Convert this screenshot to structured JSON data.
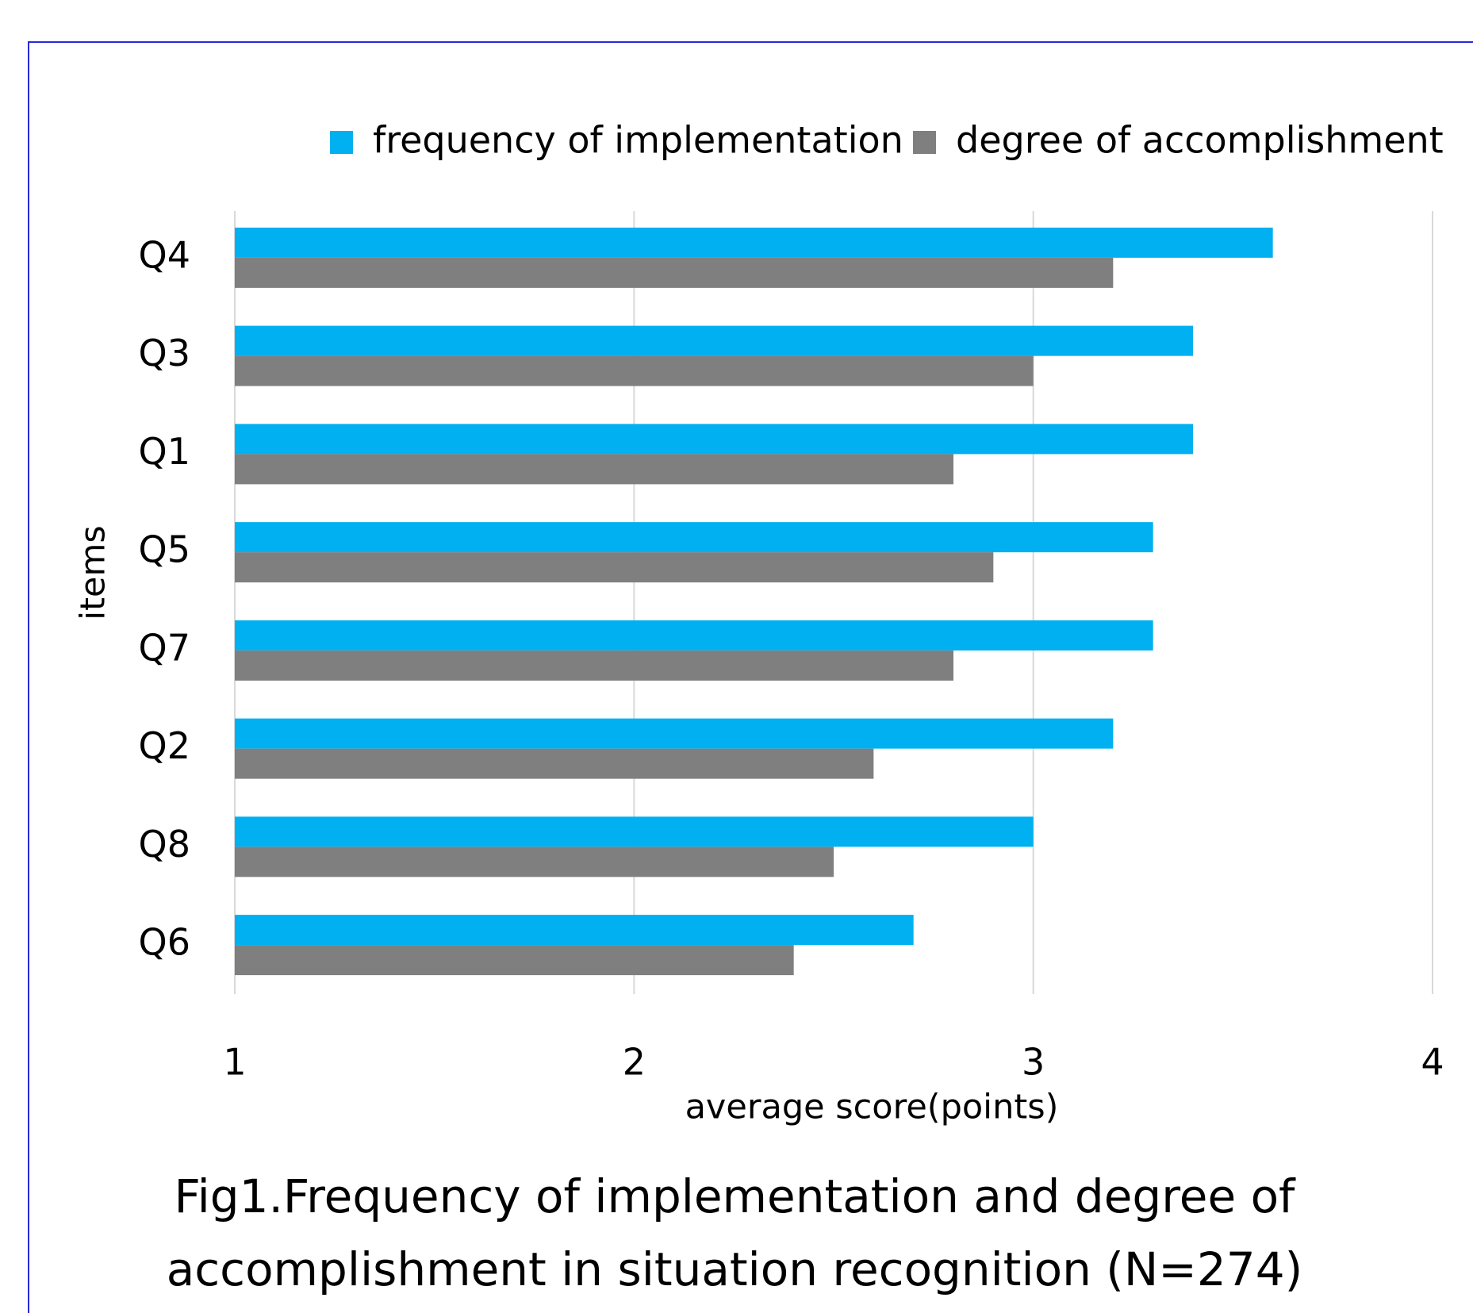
{
  "chart_data": {
    "type": "hbar",
    "title": [
      "Fig1.Frequency of implementation and degree  of",
      "accomplishment in situation recognition (N=274)"
    ],
    "xlabel": "average score(points)",
    "ylabel": "items",
    "categories": [
      "Q4",
      "Q3",
      "Q1",
      "Q5",
      "Q7",
      "Q2",
      "Q8",
      "Q6"
    ],
    "series": [
      {
        "name": "frequency of implementation",
        "color": "#00b0f0",
        "values": [
          3.6,
          3.4,
          3.4,
          3.3,
          3.3,
          3.2,
          3.0,
          2.7
        ]
      },
      {
        "name": "degree of accomplishment",
        "color": "#7f7f7f",
        "values": [
          3.2,
          3.0,
          2.8,
          2.9,
          2.8,
          2.6,
          2.5,
          2.4
        ]
      }
    ],
    "xlim": [
      1,
      4
    ],
    "xticks": [
      1,
      2,
      3,
      4
    ],
    "grid": true,
    "legend": "top"
  }
}
